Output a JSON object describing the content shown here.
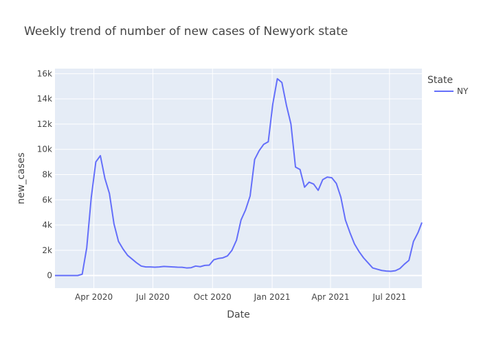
{
  "chart_data": {
    "type": "line",
    "title": "Weekly trend of number of new cases of Newyork state",
    "xlabel": "Date",
    "ylabel": "new_cases",
    "x_tick_labels": [
      "Apr 2020",
      "Jul 2020",
      "Oct 2020",
      "Jan 2021",
      "Apr 2021",
      "Jul 2021"
    ],
    "x_tick_dates": [
      "2020-04-01",
      "2020-07-01",
      "2020-10-01",
      "2021-01-01",
      "2021-04-01",
      "2021-07-01"
    ],
    "y_ticks": [
      0,
      2000,
      4000,
      6000,
      8000,
      10000,
      12000,
      14000,
      16000
    ],
    "y_tick_labels": [
      "0",
      "2k",
      "4k",
      "6k",
      "8k",
      "10k",
      "12k",
      "14k",
      "16k"
    ],
    "xlim": [
      "2020-02-01",
      "2021-08-20"
    ],
    "ylim": [
      -1000,
      16400
    ],
    "grid": true,
    "legend": {
      "title": "State",
      "position": "top-right"
    },
    "plot_bg": "#e5ecf6",
    "series": [
      {
        "name": "NY",
        "color": "#636efa",
        "x": [
          "2020-02-01",
          "2020-02-08",
          "2020-02-15",
          "2020-02-22",
          "2020-02-29",
          "2020-03-07",
          "2020-03-14",
          "2020-03-21",
          "2020-03-28",
          "2020-04-04",
          "2020-04-11",
          "2020-04-18",
          "2020-04-25",
          "2020-05-02",
          "2020-05-09",
          "2020-05-16",
          "2020-05-23",
          "2020-05-30",
          "2020-06-06",
          "2020-06-13",
          "2020-06-20",
          "2020-06-27",
          "2020-07-04",
          "2020-07-11",
          "2020-07-18",
          "2020-07-25",
          "2020-08-01",
          "2020-08-08",
          "2020-08-15",
          "2020-08-22",
          "2020-08-29",
          "2020-09-05",
          "2020-09-12",
          "2020-09-19",
          "2020-09-26",
          "2020-10-03",
          "2020-10-10",
          "2020-10-17",
          "2020-10-24",
          "2020-10-31",
          "2020-11-07",
          "2020-11-14",
          "2020-11-21",
          "2020-11-28",
          "2020-12-05",
          "2020-12-12",
          "2020-12-19",
          "2020-12-26",
          "2021-01-02",
          "2021-01-09",
          "2021-01-16",
          "2021-01-23",
          "2021-01-30",
          "2021-02-06",
          "2021-02-13",
          "2021-02-20",
          "2021-02-27",
          "2021-03-06",
          "2021-03-13",
          "2021-03-20",
          "2021-03-27",
          "2021-04-03",
          "2021-04-10",
          "2021-04-17",
          "2021-04-24",
          "2021-05-01",
          "2021-05-08",
          "2021-05-15",
          "2021-05-22",
          "2021-05-29",
          "2021-06-05",
          "2021-06-12",
          "2021-06-19",
          "2021-06-26",
          "2021-07-03",
          "2021-07-10",
          "2021-07-17",
          "2021-07-24",
          "2021-07-31",
          "2021-08-07",
          "2021-08-14",
          "2021-08-20"
        ],
        "y": [
          0,
          0,
          0,
          0,
          0,
          0,
          100,
          2200,
          6200,
          9000,
          9500,
          7700,
          6500,
          4100,
          2700,
          2100,
          1600,
          1300,
          1000,
          750,
          680,
          680,
          660,
          680,
          720,
          700,
          680,
          660,
          650,
          600,
          620,
          750,
          700,
          800,
          820,
          1250,
          1350,
          1400,
          1550,
          2000,
          2800,
          4400,
          5200,
          6300,
          9200,
          9900,
          10400,
          10600,
          13600,
          15600,
          15300,
          13500,
          12000,
          8600,
          8400,
          7000,
          7400,
          7250,
          6750,
          7600,
          7800,
          7750,
          7300,
          6200,
          4400,
          3400,
          2500,
          1900,
          1400,
          1000,
          600,
          500,
          400,
          350,
          330,
          380,
          550,
          900,
          1200,
          2700,
          3400,
          4200
        ]
      }
    ]
  }
}
